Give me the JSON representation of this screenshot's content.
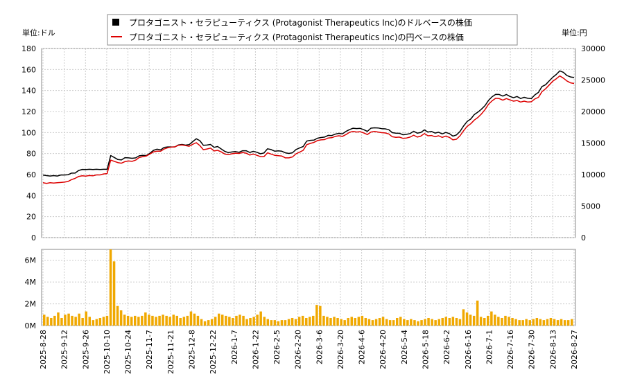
{
  "chart_data": {
    "type": "line",
    "legend": {
      "placement": "top-center",
      "items": [
        {
          "label": "プロタゴニスト・セラピューティクス (Protagonist Therapeutics Inc)のドルベースの株価",
          "color": "#000000",
          "marker": "square"
        },
        {
          "label": "プロタゴニスト・セラピューティクス (Protagonist Therapeutics Inc)の円ベースの株価",
          "color": "#dd0000",
          "marker": "line"
        }
      ]
    },
    "left_unit_label": "単位:ドル",
    "right_unit_label": "単位:円",
    "price_left_ylim": [
      0,
      180
    ],
    "price_left_ticks": [
      "0",
      "20",
      "40",
      "60",
      "80",
      "100",
      "120",
      "140",
      "160",
      "180"
    ],
    "price_right_ylim": [
      0,
      30000
    ],
    "price_right_ticks": [
      "0",
      "5000",
      "10000",
      "15000",
      "20000",
      "25000",
      "30000"
    ],
    "volume_ylim": [
      0,
      7000000
    ],
    "volume_ticks": [
      "0M",
      "2M",
      "4M",
      "6M"
    ],
    "x_tick_labels": [
      "2025-8-28",
      "2025-9-12",
      "2025-9-26",
      "2025-10-10",
      "2025-10-24",
      "2025-11-7",
      "2025-11-21",
      "2025-12-8",
      "2025-12-22",
      "2026-1-7",
      "2026-1-22",
      "2026-2-5",
      "2026-2-20",
      "2026-3-6",
      "2026-3-20",
      "2026-4-6",
      "2026-4-20",
      "2026-5-4",
      "2026-5-18",
      "2026-6-2",
      "2026-6-16",
      "2026-7-1",
      "2026-7-16",
      "2026-7-30",
      "2026-8-13",
      "2026-8-27"
    ],
    "grid": true,
    "series": [
      {
        "name": "プロタゴニスト・セラピューティクス (Protagonist Therapeutics Inc)のドルベースの株価",
        "color": "#000000",
        "axis": "left",
        "values": [
          59.5,
          59.0,
          58.6,
          59.0,
          58.6,
          59.6,
          59.6,
          59.8,
          61.4,
          61.4,
          63.9,
          64.9,
          64.8,
          65.0,
          64.8,
          65.0,
          64.8,
          65.0,
          65.0,
          78.1,
          76.3,
          74.3,
          73.9,
          76.1,
          75.9,
          75.5,
          75.9,
          77.9,
          78.3,
          78.1,
          80.3,
          83.1,
          84.1,
          83.5,
          85.9,
          86.3,
          86.3,
          86.3,
          88.2,
          88.7,
          88.0,
          88.5,
          91.3,
          94.1,
          92.3,
          87.9,
          88.1,
          88.7,
          85.9,
          86.7,
          84.4,
          82.1,
          80.9,
          81.5,
          81.9,
          81.2,
          82.7,
          82.7,
          81.0,
          82.1,
          81.2,
          79.8,
          80.6,
          84.5,
          83.8,
          82.3,
          82.6,
          82.2,
          80.7,
          80.1,
          80.8,
          83.9,
          85.3,
          86.7,
          91.9,
          92.6,
          92.8,
          94.6,
          95.3,
          95.7,
          97.3,
          97.1,
          98.5,
          99.2,
          98.8,
          101.1,
          102.8,
          104.1,
          103.8,
          104.0,
          102.7,
          101.1,
          104.2,
          104.5,
          104.4,
          103.7,
          103.5,
          102.7,
          99.9,
          99.4,
          99.3,
          97.9,
          98.3,
          99.0,
          101.2,
          99.4,
          100.0,
          102.5,
          100.5,
          101.0,
          99.5,
          100.3,
          98.7,
          100.1,
          99.0,
          96.6,
          97.7,
          101.1,
          106.2,
          110.6,
          112.8,
          117.1,
          119.4,
          122.2,
          125.6,
          130.6,
          134.1,
          136.3,
          136.2,
          134.7,
          136.2,
          134.4,
          133.1,
          134.3,
          132.4,
          133.5,
          132.6,
          132.3,
          135.8,
          138.2,
          143.8,
          145.5,
          149.1,
          152.6,
          155.3,
          158.7,
          157.3,
          154.2,
          152.9,
          152.4
        ]
      },
      {
        "name": "プロタゴニスト・セラピューティクス (Protagonist Therapeutics Inc)の円ベースの株価",
        "color": "#dd0000",
        "axis": "right",
        "values": [
          8700,
          8600,
          8700,
          8650,
          8700,
          8750,
          8800,
          8900,
          9200,
          9400,
          9700,
          9800,
          9750,
          9850,
          9800,
          9950,
          9950,
          10100,
          10150,
          12300,
          12100,
          11900,
          11800,
          12050,
          12150,
          12100,
          12300,
          12700,
          12850,
          12950,
          13250,
          13600,
          13700,
          13700,
          14050,
          14250,
          14350,
          14400,
          14650,
          14700,
          14600,
          14500,
          14800,
          15050,
          14600,
          13950,
          14050,
          14200,
          13750,
          13850,
          13600,
          13250,
          13150,
          13300,
          13400,
          13350,
          13500,
          13400,
          13100,
          13250,
          13050,
          12850,
          12850,
          13450,
          13250,
          13050,
          13000,
          12950,
          12650,
          12650,
          12800,
          13300,
          13550,
          13850,
          14750,
          14950,
          15100,
          15400,
          15500,
          15550,
          15800,
          15850,
          16050,
          16150,
          16050,
          16350,
          16700,
          16850,
          16750,
          16800,
          16600,
          16350,
          16750,
          16850,
          16750,
          16650,
          16600,
          16450,
          16000,
          15900,
          15950,
          15750,
          15800,
          15950,
          16250,
          15950,
          16100,
          16500,
          16150,
          16200,
          16000,
          16150,
          15900,
          16100,
          15900,
          15500,
          15600,
          16150,
          16950,
          17650,
          18050,
          18650,
          19050,
          19600,
          20300,
          21150,
          21700,
          22100,
          22050,
          21800,
          22050,
          21850,
          21650,
          21750,
          21500,
          21650,
          21500,
          21550,
          22000,
          22250,
          23150,
          23600,
          24200,
          24800,
          25200,
          25650,
          25300,
          24850,
          24550,
          24450
        ]
      }
    ],
    "volume": [
      1.0,
      0.8,
      0.7,
      0.9,
      1.2,
      0.7,
      1.0,
      1.1,
      0.9,
      0.8,
      1.1,
      0.7,
      1.3,
      0.8,
      0.5,
      0.6,
      0.7,
      0.8,
      0.9,
      7.0,
      5.9,
      1.8,
      1.4,
      1.0,
      0.9,
      0.8,
      0.9,
      0.8,
      0.9,
      1.2,
      1.0,
      0.9,
      0.8,
      0.9,
      1.0,
      0.9,
      0.8,
      1.0,
      0.9,
      0.7,
      0.8,
      0.9,
      1.3,
      1.1,
      0.9,
      0.6,
      0.4,
      0.5,
      0.6,
      0.8,
      1.1,
      1.0,
      0.9,
      0.8,
      0.7,
      0.9,
      1.0,
      0.9,
      0.6,
      0.7,
      0.8,
      1.0,
      1.3,
      0.8,
      0.6,
      0.5,
      0.5,
      0.4,
      0.5,
      0.5,
      0.6,
      0.7,
      0.6,
      0.8,
      0.9,
      0.7,
      0.8,
      0.9,
      1.9,
      1.8,
      0.9,
      0.8,
      0.7,
      0.8,
      0.7,
      0.6,
      0.5,
      0.7,
      0.8,
      0.7,
      0.8,
      0.9,
      0.7,
      0.6,
      0.5,
      0.6,
      0.7,
      0.8,
      0.6,
      0.5,
      0.5,
      0.7,
      0.8,
      0.6,
      0.5,
      0.6,
      0.5,
      0.4,
      0.5,
      0.6,
      0.7,
      0.6,
      0.5,
      0.6,
      0.7,
      0.8,
      0.7,
      0.8,
      0.7,
      0.6,
      1.5,
      1.2,
      1.0,
      0.9,
      2.3,
      0.8,
      0.7,
      0.9,
      1.3,
      1.0,
      0.8,
      0.7,
      0.9,
      0.8,
      0.7,
      0.6,
      0.5,
      0.5,
      0.6,
      0.5,
      0.6,
      0.7,
      0.6,
      0.5,
      0.6,
      0.7,
      0.6,
      0.5,
      0.6,
      0.5,
      0.5,
      0.6
    ]
  }
}
